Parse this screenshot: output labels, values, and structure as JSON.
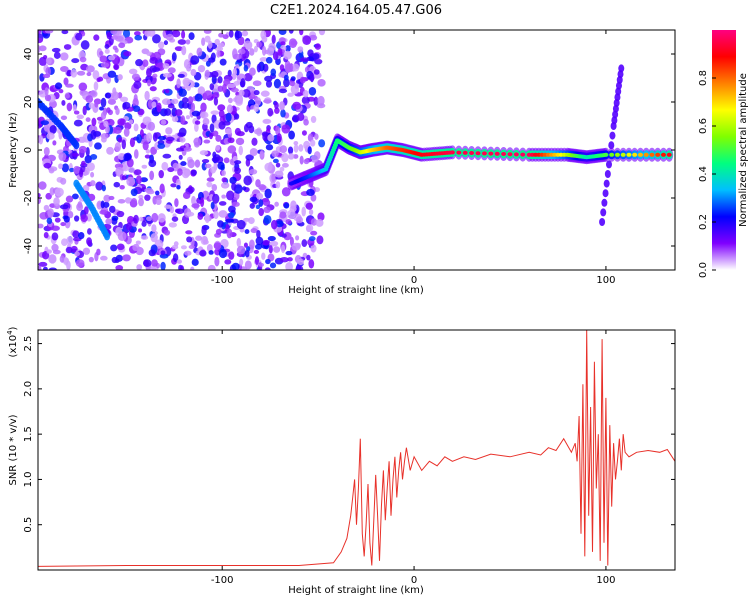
{
  "title": "C2E1.2024.164.05.47.G06",
  "chart_data": [
    {
      "type": "heatmap",
      "xlabel": "Height of straight line (km)",
      "ylabel": "Frequency (Hz)",
      "xlim": [
        -196,
        136
      ],
      "ylim": [
        -50,
        50
      ],
      "x_ticks": [
        -100,
        0,
        100
      ],
      "x_tick_labels": [
        "-100",
        "0",
        "100"
      ],
      "y_ticks": [
        -40,
        -20,
        0,
        20,
        40
      ],
      "y_tick_labels": [
        "-40",
        "-20",
        "0",
        "20",
        "40"
      ],
      "grid": false,
      "noise_region_x": [
        -196,
        -48
      ],
      "ridge": {
        "points": [
          [
            -64,
            -14
          ],
          [
            -55,
            -11
          ],
          [
            -46,
            -8
          ],
          [
            -40,
            4
          ],
          [
            -34,
            1
          ],
          [
            -28,
            -1
          ],
          [
            -22,
            0
          ],
          [
            -14,
            1
          ],
          [
            -6,
            0
          ],
          [
            4,
            -2
          ],
          [
            20,
            -1
          ],
          [
            60,
            -2
          ],
          [
            80,
            -2
          ],
          [
            90,
            -3
          ],
          [
            100,
            -2
          ],
          [
            136,
            -2
          ]
        ],
        "amplitude": [
          0.2,
          0.25,
          0.35,
          0.45,
          0.5,
          0.6,
          0.7,
          0.8,
          0.85,
          0.9,
          0.95,
          0.97,
          0.6,
          0.4,
          0.5,
          0.95
        ]
      },
      "streaks": [
        {
          "points": [
            [
              -196,
              20
            ],
            [
              -184,
              10
            ],
            [
              -176,
              2
            ]
          ],
          "amplitude": 0.25
        },
        {
          "points": [
            [
              -176,
              -14
            ],
            [
              -168,
              -24
            ],
            [
              -160,
              -36
            ]
          ],
          "amplitude": 0.3
        },
        {
          "points": [
            [
              98,
              -30
            ],
            [
              104,
              10
            ],
            [
              108,
              34
            ]
          ],
          "amplitude": 0.15
        }
      ],
      "colorbar": {
        "label": "Normalized spectral amplitude",
        "range": [
          0,
          1
        ],
        "ticks": [
          0.0,
          0.2,
          0.4,
          0.6,
          0.8
        ],
        "tick_labels": [
          "0.0",
          "0.2",
          "0.4",
          "0.6",
          "0.8"
        ],
        "colors": [
          "#ffffff",
          "#7f00ff",
          "#0000ff",
          "#00bfff",
          "#00ff80",
          "#80ff00",
          "#ffff00",
          "#ff8000",
          "#ff0000",
          "#ff0080"
        ]
      }
    },
    {
      "type": "line",
      "xlabel": "Height of straight line (km)",
      "ylabel": "SNR (10 * v/v)",
      "y_multiplier_label": "(x10",
      "y_multiplier_exp": "4",
      "xlim": [
        -196,
        136
      ],
      "ylim": [
        0,
        2.65
      ],
      "x_ticks": [
        -100,
        0,
        100
      ],
      "x_tick_labels": [
        "-100",
        "0",
        "100"
      ],
      "y_ticks": [
        0.5,
        1.0,
        1.5,
        2.0,
        2.5
      ],
      "y_tick_labels": [
        "0.5",
        "1.0",
        "1.5",
        "2.0",
        "2.5"
      ],
      "grid": false,
      "series": [
        {
          "color": "#e8312a",
          "x": [
            -196,
            -150,
            -100,
            -60,
            -42,
            -38,
            -35,
            -33,
            -32,
            -31,
            -30,
            -29,
            -28,
            -27,
            -26,
            -25,
            -24,
            -23,
            -22,
            -21,
            -20,
            -19,
            -18,
            -17,
            -16,
            -15,
            -14,
            -13,
            -12,
            -11,
            -10,
            -9,
            -8,
            -7,
            -6,
            -5,
            -4,
            -2,
            0,
            4,
            8,
            12,
            16,
            20,
            26,
            32,
            40,
            50,
            60,
            66,
            70,
            74,
            78,
            82,
            84,
            85,
            86,
            87,
            88,
            89,
            90,
            91,
            92,
            93,
            94,
            95,
            96,
            97,
            98,
            99,
            100,
            101,
            102,
            103,
            104,
            105,
            106,
            107,
            108,
            109,
            110,
            112,
            116,
            122,
            128,
            132,
            136
          ],
          "y": [
            0.04,
            0.05,
            0.05,
            0.05,
            0.08,
            0.2,
            0.35,
            0.6,
            0.8,
            1.0,
            0.5,
            0.9,
            1.45,
            0.4,
            0.15,
            0.5,
            0.95,
            0.3,
            0.05,
            0.55,
            1.05,
            0.6,
            0.1,
            0.7,
            1.1,
            0.55,
            0.9,
            1.2,
            0.6,
            1.0,
            1.25,
            0.8,
            1.1,
            1.3,
            1.0,
            1.2,
            1.35,
            1.1,
            1.25,
            1.1,
            1.2,
            1.15,
            1.25,
            1.2,
            1.25,
            1.22,
            1.28,
            1.25,
            1.3,
            1.27,
            1.35,
            1.32,
            1.45,
            1.3,
            1.4,
            1.2,
            1.7,
            0.4,
            2.05,
            0.15,
            2.65,
            0.6,
            1.8,
            0.2,
            2.3,
            0.9,
            1.5,
            0.1,
            2.55,
            0.3,
            1.9,
            0.05,
            1.6,
            0.7,
            1.4,
            1.0,
            1.2,
            1.45,
            1.1,
            1.5,
            1.3,
            1.25,
            1.3,
            1.32,
            1.3,
            1.33,
            1.2
          ]
        }
      ]
    }
  ]
}
